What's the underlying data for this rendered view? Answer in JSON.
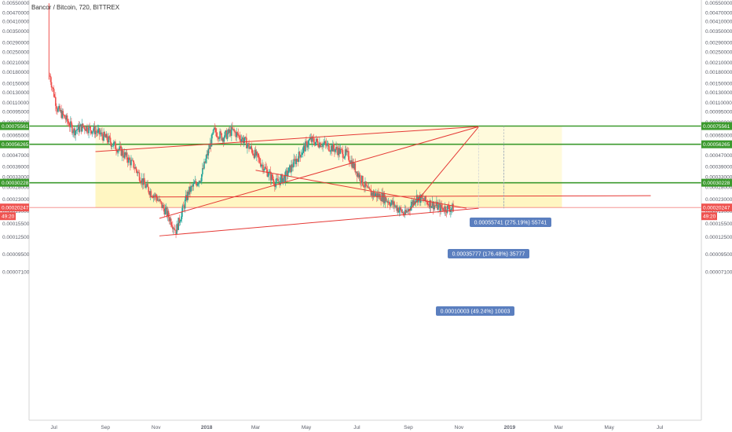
{
  "chart_data": {
    "type": "candlestick",
    "title": "Bancor / Bitcoin, 720, BITTREX",
    "xlabel": "",
    "ylabel": "",
    "ylim": [
      6.5e-06,
      0.0058
    ],
    "yscale": "log",
    "y_ticks": [
      "0.00550000",
      "0.00470000",
      "0.00410000",
      "0.00350000",
      "0.00290000",
      "0.00250000",
      "0.00210000",
      "0.00180000",
      "0.00150000",
      "0.00130000",
      "0.00110000",
      "0.00095000",
      "0.00080000",
      "0.00065000",
      "0.00047000",
      "0.00039000",
      "0.00033000",
      "0.00028000",
      "0.00023000",
      "0.00019000",
      "0.00015500",
      "0.00012500",
      "0.00009500",
      "0.00007100"
    ],
    "x_ticks": [
      "Jul",
      "Sep",
      "Nov",
      "2018",
      "Mar",
      "May",
      "Jul",
      "Sep",
      "Nov",
      "2019",
      "Mar",
      "May",
      "Jul"
    ],
    "price_points": [
      [
        "2017-06-25",
        0.0055
      ],
      [
        "2017-06-26",
        0.0017
      ],
      [
        "2017-07-05",
        0.001
      ],
      [
        "2017-07-15",
        0.00085
      ],
      [
        "2017-07-25",
        0.0007
      ],
      [
        "2017-08-05",
        0.00075
      ],
      [
        "2017-08-20",
        0.0007
      ],
      [
        "2017-09-05",
        0.0006
      ],
      [
        "2017-09-20",
        0.0005
      ],
      [
        "2017-10-05",
        0.0004
      ],
      [
        "2017-10-20",
        0.00028
      ],
      [
        "2017-11-01",
        0.00024
      ],
      [
        "2017-11-15",
        0.00018
      ],
      [
        "2017-11-25",
        0.00014
      ],
      [
        "2017-12-10",
        0.00026
      ],
      [
        "2017-12-25",
        0.00033
      ],
      [
        "2018-01-10",
        0.0007
      ],
      [
        "2018-01-20",
        0.00063
      ],
      [
        "2018-02-01",
        0.0007
      ],
      [
        "2018-02-15",
        0.0006
      ],
      [
        "2018-03-01",
        0.00047
      ],
      [
        "2018-03-15",
        0.00036
      ],
      [
        "2018-03-25",
        0.0003
      ],
      [
        "2018-04-05",
        0.00033
      ],
      [
        "2018-04-20",
        0.00045
      ],
      [
        "2018-05-05",
        0.0006
      ],
      [
        "2018-05-20",
        0.00057
      ],
      [
        "2018-06-05",
        0.00052
      ],
      [
        "2018-06-20",
        0.00047
      ],
      [
        "2018-07-01",
        0.00036
      ],
      [
        "2018-07-15",
        0.00026
      ],
      [
        "2018-08-01",
        0.00024
      ],
      [
        "2018-08-15",
        0.00021
      ],
      [
        "2018-08-28",
        0.00018
      ],
      [
        "2018-09-10",
        0.00024
      ],
      [
        "2018-09-25",
        0.00022
      ],
      [
        "2018-10-10",
        0.0002
      ],
      [
        "2018-10-25",
        0.0002
      ]
    ],
    "horizontal_levels": [
      {
        "value": 0.00075561,
        "label": "0.00075561",
        "color": "#3c9a2e"
      },
      {
        "value": 0.00056265,
        "label": "0.00056265",
        "color": "#3c9a2e"
      },
      {
        "value": 0.00030228,
        "label": "0.00030228",
        "color": "#3c9a2e"
      },
      {
        "value": 0.00020247,
        "label": "0.00020247",
        "color": "#ef5350"
      }
    ],
    "current_price_badge": "0.00020247",
    "countdown_badge": "49:20",
    "trendlines": [
      {
        "x1": "2017-08-20",
        "y1": 0.0005,
        "x2": "2018-11-25",
        "y2": 0.00075
      },
      {
        "x1": "2017-11-05",
        "y1": 0.00017,
        "x2": "2018-11-25",
        "y2": 0.00075
      },
      {
        "x1": "2017-11-05",
        "y1": 0.000128,
        "x2": "2018-11-25",
        "y2": 0.0002
      },
      {
        "x1": "2017-10-25",
        "y1": 0.00024,
        "x2": "2019-06-20",
        "y2": 0.000245
      },
      {
        "x1": "2018-03-01",
        "y1": 0.00037,
        "x2": "2018-11-10",
        "y2": 0.0002
      },
      {
        "x1": "2018-09-01",
        "y1": 0.00019,
        "x2": "2018-11-25",
        "y2": 0.00075
      }
    ],
    "projections": [
      {
        "label": "0.00055741 (275.19%) 55741",
        "x_from": "2018-10-25",
        "x_to": "2018-12-25",
        "y_from": 0.0002,
        "y_to": 0.00075561
      },
      {
        "label": "0.00035777 (176.48%) 35777",
        "x_from": "2018-10-25",
        "x_to": "2018-12-25",
        "y_from": 0.0002,
        "y_to": 0.00056265
      },
      {
        "label": "0.00010003 (49.24%) 10003",
        "x_from": "2018-10-25",
        "x_to": "2018-12-25",
        "y_from": 0.0002,
        "y_to": 0.00030228
      }
    ],
    "colors": {
      "up": "#26a69a",
      "down": "#ef5350",
      "trendline": "#e53935",
      "level": "#3c9a2e",
      "zone": "#fff9d6",
      "callout": "#5b7fbf"
    },
    "grid": false,
    "legend": "none"
  }
}
